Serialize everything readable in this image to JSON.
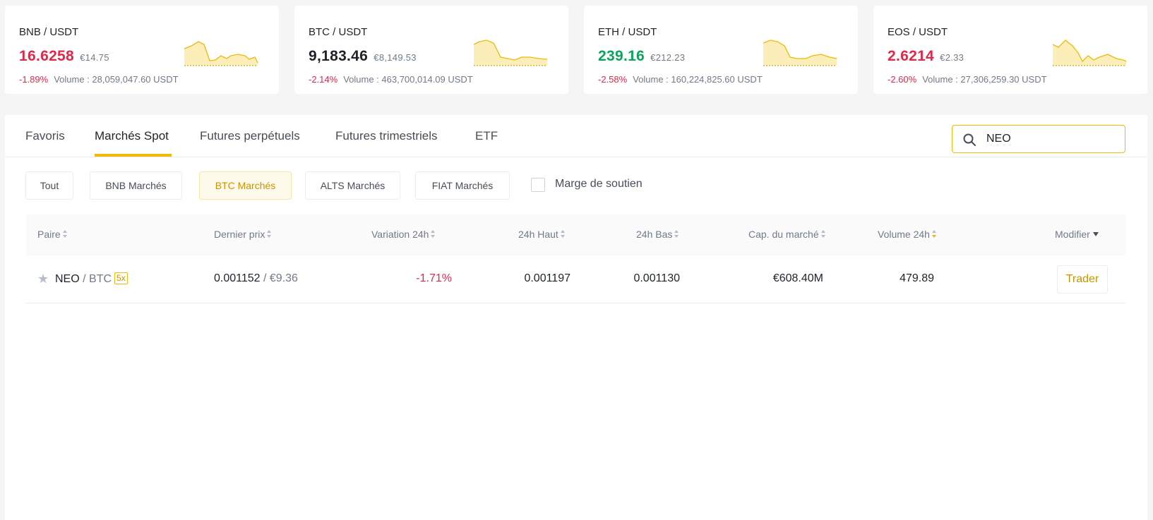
{
  "tickers": [
    {
      "pair": "BNB / USDT",
      "price": "16.6258",
      "fiat": "€14.75",
      "change": "-1.89%",
      "volume": "Volume : 28,059,047.60 USDT",
      "price_color": "red"
    },
    {
      "pair": "BTC / USDT",
      "price": "9,183.46",
      "fiat": "€8,149.53",
      "change": "-2.14%",
      "volume": "Volume : 463,700,014.09 USDT",
      "price_color": "dark"
    },
    {
      "pair": "ETH / USDT",
      "price": "239.16",
      "fiat": "€212.23",
      "change": "-2.58%",
      "volume": "Volume : 160,224,825.60 USDT",
      "price_color": "green"
    },
    {
      "pair": "EOS / USDT",
      "price": "2.6214",
      "fiat": "€2.33",
      "change": "-2.60%",
      "volume": "Volume : 27,306,259.30 USDT",
      "price_color": "red"
    }
  ],
  "tabs": [
    {
      "label": "Favoris"
    },
    {
      "label": "Marchés Spot"
    },
    {
      "label": "Futures perpétuels"
    },
    {
      "label": "Futures trimestriels"
    },
    {
      "label": "ETF"
    }
  ],
  "active_tab": "Marchés Spot",
  "search": {
    "value": "NEO"
  },
  "filters": [
    {
      "label": "Tout"
    },
    {
      "label": "BNB Marchés"
    },
    {
      "label": "BTC Marchés"
    },
    {
      "label": "ALTS Marchés"
    },
    {
      "label": "FIAT Marchés"
    }
  ],
  "active_filter": "BTC Marchés",
  "margin_checkbox": {
    "label": "Marge de soutien",
    "checked": false
  },
  "table": {
    "headers": {
      "pair": "Paire",
      "last_price": "Dernier prix",
      "change_24h": "Variation 24h",
      "high_24h": "24h Haut",
      "low_24h": "24h Bas",
      "market_cap": "Cap. du marché",
      "volume_24h": "Volume 24h",
      "modify": "Modifier"
    },
    "rows": [
      {
        "base": "NEO",
        "quote": "/ BTC",
        "leverage": "5x",
        "last_price": "0.001152",
        "last_price_fiat": "/ €9.36",
        "change_24h": "-1.71%",
        "high_24h": "0.001197",
        "low_24h": "0.001130",
        "market_cap": "€608.40M",
        "volume_24h": "479.89",
        "action": "Trader"
      }
    ]
  },
  "colors": {
    "accent": "#f0b90b",
    "down": "#e0294a",
    "up": "#0ca35f"
  }
}
